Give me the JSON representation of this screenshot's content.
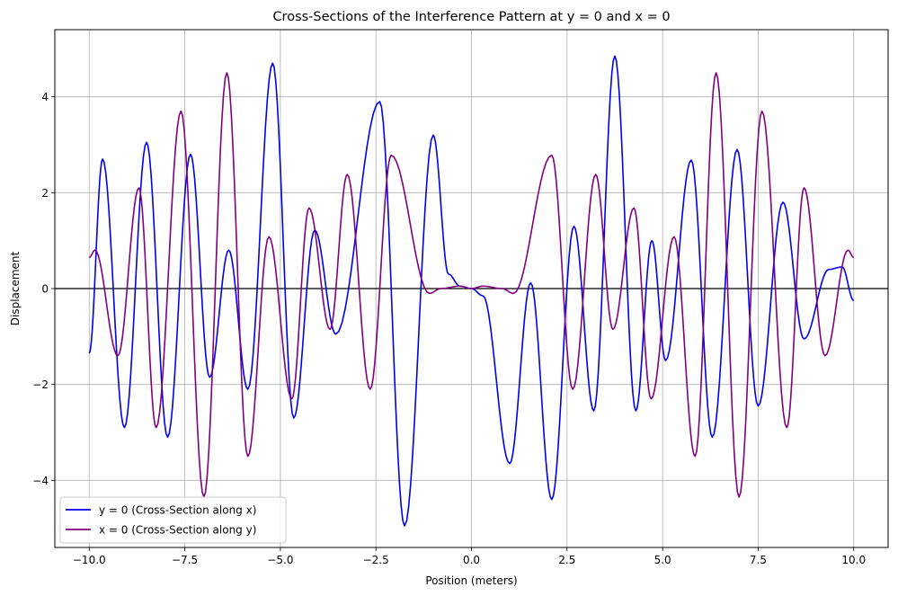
{
  "chart_data": {
    "type": "line",
    "title": "Cross-Sections of the Interference Pattern at y = 0 and x = 0",
    "xlabel": "Position (meters)",
    "ylabel": "Displacement",
    "xlim": [
      -10.9,
      10.9
    ],
    "ylim": [
      -5.4,
      5.4
    ],
    "xticks": [
      -10,
      -7.5,
      -5,
      -2.5,
      0,
      2.5,
      5,
      7.5,
      10
    ],
    "xtick_labels": [
      "−10.0",
      "−7.5",
      "−5.0",
      "−2.5",
      "0.0",
      "2.5",
      "5.0",
      "7.5",
      "10.0"
    ],
    "yticks": [
      -4,
      -2,
      0,
      2,
      4
    ],
    "ytick_labels": [
      "−4",
      "−2",
      "0",
      "2",
      "4"
    ],
    "grid": true,
    "zero_line": 0,
    "legend_position": "lower-left",
    "series": [
      {
        "name": "y = 0 (Cross-Section along x)",
        "color": "#0000ee",
        "x": [
          -10.0,
          -9.65,
          -9.08,
          -8.5,
          -7.95,
          -7.35,
          -6.85,
          -6.35,
          -5.85,
          -5.2,
          -4.65,
          -4.1,
          -3.55,
          -2.4,
          -1.75,
          -1.0,
          -0.6,
          -0.3,
          0.0,
          0.3,
          1.0,
          1.55,
          2.1,
          2.68,
          3.2,
          3.75,
          4.3,
          4.72,
          5.08,
          5.75,
          6.3,
          6.95,
          7.5,
          8.15,
          8.7,
          9.35,
          9.7,
          10.0
        ],
        "y": [
          -1.35,
          2.7,
          -2.9,
          3.05,
          -3.1,
          2.8,
          -1.85,
          0.8,
          -2.1,
          4.7,
          -2.7,
          1.22,
          -0.95,
          3.9,
          -4.95,
          3.2,
          0.3,
          0.05,
          0.0,
          -0.15,
          -3.65,
          0.12,
          -4.4,
          1.3,
          -2.55,
          4.85,
          -2.55,
          1.0,
          -1.5,
          2.68,
          -3.1,
          2.9,
          -2.45,
          1.8,
          -1.05,
          0.4,
          0.45,
          -0.25
        ]
      },
      {
        "name": "x = 0 (Cross-Section along y)",
        "color": "#800080",
        "x": [
          -10.0,
          -9.85,
          -9.25,
          -8.7,
          -8.25,
          -7.6,
          -7.0,
          -6.4,
          -5.85,
          -5.3,
          -4.7,
          -4.25,
          -3.7,
          -3.25,
          -2.65,
          -2.1,
          -1.1,
          -0.8,
          -0.3,
          0.0,
          0.3,
          0.8,
          1.1,
          2.1,
          2.65,
          3.25,
          3.7,
          4.25,
          4.7,
          5.3,
          5.85,
          6.4,
          7.0,
          7.6,
          8.25,
          8.7,
          9.25,
          9.85,
          10.0
        ],
        "y": [
          0.65,
          0.8,
          -1.4,
          2.1,
          -2.9,
          3.7,
          -4.35,
          4.5,
          -3.5,
          1.08,
          -2.3,
          1.68,
          -0.85,
          2.38,
          -2.1,
          2.78,
          -0.1,
          0.0,
          0.05,
          0.0,
          0.05,
          0.0,
          -0.1,
          2.78,
          -2.1,
          2.38,
          -0.85,
          1.68,
          -2.3,
          1.08,
          -3.5,
          4.5,
          -4.35,
          3.7,
          -2.9,
          2.1,
          -1.4,
          0.8,
          0.65
        ]
      }
    ]
  }
}
